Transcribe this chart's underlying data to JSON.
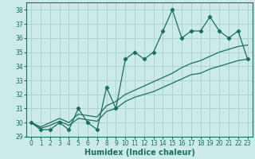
{
  "xlabel": "Humidex (Indice chaleur)",
  "bg_color": "#cceae7",
  "grid_color": "#aad4d0",
  "line_color": "#1a7060",
  "x_data": [
    0,
    1,
    2,
    3,
    4,
    5,
    6,
    7,
    8,
    9,
    10,
    11,
    12,
    13,
    14,
    15,
    16,
    17,
    18,
    19,
    20,
    21,
    22,
    23
  ],
  "y_main": [
    30,
    29.5,
    29.5,
    30,
    29.5,
    31,
    30,
    29.5,
    32.5,
    31,
    34.5,
    35,
    34.5,
    35,
    36.5,
    38,
    36,
    36.5,
    36.5,
    37.5,
    36.5,
    36,
    36.5,
    34.5
  ],
  "y_low": [
    30,
    29.6,
    29.8,
    30.1,
    29.8,
    30.3,
    30.2,
    30.1,
    30.8,
    31.0,
    31.5,
    31.8,
    32.0,
    32.2,
    32.5,
    32.8,
    33.1,
    33.4,
    33.5,
    33.8,
    34.0,
    34.2,
    34.4,
    34.5
  ],
  "y_high": [
    30,
    29.7,
    30.0,
    30.3,
    30.0,
    30.6,
    30.5,
    30.4,
    31.2,
    31.5,
    32.0,
    32.3,
    32.6,
    32.9,
    33.2,
    33.5,
    33.9,
    34.2,
    34.4,
    34.7,
    35.0,
    35.2,
    35.4,
    35.5
  ],
  "ylim": [
    29,
    38.5
  ],
  "yticks": [
    29,
    30,
    31,
    32,
    33,
    34,
    35,
    36,
    37,
    38
  ],
  "xlim": [
    -0.5,
    23.5
  ],
  "xticks": [
    0,
    1,
    2,
    3,
    4,
    5,
    6,
    7,
    8,
    9,
    10,
    11,
    12,
    13,
    14,
    15,
    16,
    17,
    18,
    19,
    20,
    21,
    22,
    23
  ],
  "tick_fontsize": 5.5,
  "label_fontsize": 7
}
